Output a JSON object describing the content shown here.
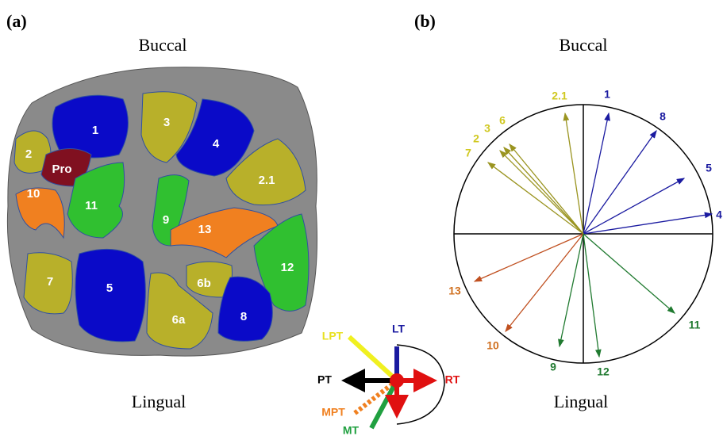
{
  "panels": [
    {
      "label": "(a)",
      "top": "Buccal",
      "bottom": "Lingual",
      "facets": [
        "1",
        "2",
        "3",
        "4",
        "2.1",
        "Pro",
        "10",
        "11",
        "9",
        "13",
        "12",
        "7",
        "5",
        "6b",
        "6a",
        "8"
      ]
    },
    {
      "label": "(b)",
      "top": "Buccal",
      "bottom": "Lingual",
      "vectors": [
        "2.1",
        "1",
        "8",
        "5",
        "4",
        "6",
        "3",
        "2",
        "7",
        "13",
        "10",
        "9",
        "12",
        "11"
      ]
    }
  ],
  "legend": [
    "LT",
    "RT",
    "PT",
    "LPT",
    "MPT",
    "MT"
  ]
}
